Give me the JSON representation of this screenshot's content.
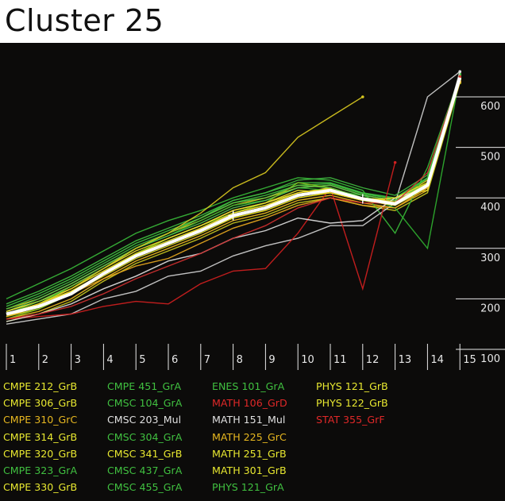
{
  "title": "Cluster 25",
  "chart_data": {
    "type": "line",
    "title": "Cluster 25",
    "categories": [
      "1",
      "2",
      "3",
      "4",
      "5",
      "6",
      "7",
      "8",
      "9",
      "10",
      "11",
      "12",
      "13",
      "14",
      "15"
    ],
    "x_tick_labels": [
      "1",
      "2",
      "3",
      "4",
      "5",
      "6",
      "7",
      "8",
      "9",
      "10",
      "11",
      "12",
      "13",
      "14",
      "15"
    ],
    "y_tick_labels": [
      "100",
      "200",
      "300",
      "400",
      "500",
      "600"
    ],
    "ylim": [
      100,
      650
    ],
    "y_axis_side": "right",
    "grid": false,
    "legend_position": "bottom",
    "mean_line": {
      "color": "#ffffff",
      "values": [
        170,
        185,
        210,
        250,
        285,
        310,
        335,
        365,
        380,
        405,
        415,
        398,
        388,
        425,
        638
      ],
      "markers_at": [
        "8",
        "12"
      ]
    },
    "series": [
      {
        "name": "CMPE 212_GrB",
        "color": "#e8e830",
        "values": [
          175,
          195,
          220,
          255,
          290,
          315,
          340,
          370,
          385,
          410,
          420,
          400,
          395,
          430,
          640
        ]
      },
      {
        "name": "CMPE 306_GrB",
        "color": "#d8d828",
        "values": [
          165,
          180,
          210,
          245,
          280,
          305,
          330,
          360,
          375,
          400,
          410,
          395,
          385,
          420,
          635
        ]
      },
      {
        "name": "CMPE 310_GrC",
        "color": "#e8b820",
        "values": [
          160,
          175,
          200,
          240,
          275,
          300,
          325,
          355,
          370,
          395,
          405,
          390,
          380,
          415,
          630
        ]
      },
      {
        "name": "CMPE 314_GrB",
        "color": "#e0d020",
        "values": [
          180,
          200,
          230,
          265,
          300,
          330,
          355,
          385,
          400,
          420,
          425,
          405,
          395,
          435,
          640
        ]
      },
      {
        "name": "CMPE 320_GrB",
        "color": "#f0f040",
        "values": [
          170,
          190,
          215,
          250,
          285,
          310,
          335,
          365,
          380,
          405,
          415,
          398,
          388,
          425,
          638
        ]
      },
      {
        "name": "CMPE 323_GrA",
        "color": "#40c040",
        "values": [
          190,
          215,
          245,
          280,
          315,
          340,
          365,
          395,
          410,
          430,
          430,
          410,
          400,
          440,
          645
        ]
      },
      {
        "name": "CMPE 330_GrB",
        "color": "#c8c820",
        "values": [
          155,
          170,
          195,
          235,
          270,
          295,
          320,
          350,
          365,
          390,
          400,
          385,
          375,
          410,
          628
        ]
      },
      {
        "name": "CMPE 451_GrA",
        "color": "#40c840",
        "values": [
          185,
          210,
          240,
          275,
          310,
          335,
          360,
          390,
          405,
          425,
          428,
          408,
          398,
          438,
          642
        ]
      },
      {
        "name": "CMSC 104_GrA",
        "color": "#38b838",
        "values": [
          200,
          230,
          260,
          295,
          330,
          355,
          375,
          400,
          420,
          440,
          435,
          415,
          330,
          460,
          640
        ]
      },
      {
        "name": "CMSC 203_Mul",
        "color": "#d0d0d0",
        "values": [
          150,
          160,
          170,
          200,
          215,
          245,
          255,
          285,
          305,
          320,
          345,
          345,
          390,
          600,
          650
        ]
      },
      {
        "name": "CMSC 304_GrA",
        "color": "#30b030",
        "values": [
          170,
          190,
          225,
          260,
          300,
          325,
          355,
          385,
          395,
          420,
          415,
          405,
          380,
          300,
          640
        ]
      },
      {
        "name": "CMSC 341_GrB",
        "color": "#e8e030",
        "values": [
          165,
          185,
          215,
          250,
          290,
          320,
          345,
          375,
          390,
          415,
          410,
          395,
          400,
          415,
          630
        ]
      },
      {
        "name": "CMSC 437_GrA",
        "color": "#40b840",
        "values": [
          180,
          205,
          235,
          270,
          305,
          330,
          360,
          395,
          410,
          435,
          440,
          420,
          405,
          445,
          645
        ]
      },
      {
        "name": "CMSC 455_GrA",
        "color": "#50c050",
        "values": [
          175,
          200,
          230,
          265,
          300,
          325,
          350,
          380,
          395,
          420,
          425,
          405,
          395,
          430,
          640
        ]
      },
      {
        "name": "ENES 101_GrA",
        "color": "#80c020",
        "values": [
          160,
          180,
          210,
          250,
          290,
          320,
          345,
          370,
          390,
          430,
          420,
          395,
          390,
          420,
          635
        ]
      },
      {
        "name": "MATH 106_GrD",
        "color": "#d02020",
        "values": [
          160,
          165,
          170,
          185,
          195,
          190,
          230,
          255,
          260,
          330,
          420,
          220,
          470,
          null,
          null
        ]
      },
      {
        "name": "MATH 151_Mul",
        "color": "#e0e0e0",
        "values": [
          155,
          170,
          190,
          220,
          245,
          275,
          290,
          320,
          335,
          360,
          350,
          355,
          400,
          420,
          650
        ]
      },
      {
        "name": "MATH 225_GrC",
        "color": "#e8a820",
        "values": [
          165,
          185,
          210,
          240,
          265,
          280,
          310,
          340,
          360,
          385,
          400,
          385,
          380,
          420,
          630
        ]
      },
      {
        "name": "MATH 251_GrB",
        "color": "#d8d020",
        "values": [
          170,
          190,
          220,
          255,
          290,
          310,
          335,
          360,
          375,
          400,
          410,
          395,
          385,
          425,
          635
        ]
      },
      {
        "name": "MATH 301_GrB",
        "color": "#f0e030",
        "values": [
          175,
          195,
          225,
          260,
          295,
          320,
          345,
          375,
          390,
          410,
          418,
          400,
          392,
          428,
          638
        ]
      },
      {
        "name": "PHYS 121_GrA",
        "color": "#60c040",
        "values": [
          170,
          195,
          225,
          260,
          300,
          330,
          360,
          390,
          400,
          425,
          420,
          400,
          390,
          425,
          640
        ]
      },
      {
        "name": "PHYS 121_GrB",
        "color": "#d8c820",
        "values": [
          165,
          190,
          220,
          260,
          300,
          330,
          370,
          420,
          450,
          520,
          560,
          600,
          null,
          null,
          null
        ]
      },
      {
        "name": "PHYS 122_GrB",
        "color": "#e8d828",
        "values": [
          170,
          190,
          215,
          250,
          285,
          310,
          340,
          370,
          385,
          405,
          410,
          395,
          400,
          430,
          640
        ]
      },
      {
        "name": "STAT 355_GrF",
        "color": "#d03030",
        "values": [
          160,
          170,
          185,
          210,
          240,
          265,
          290,
          320,
          345,
          380,
          400,
          390,
          390,
          450,
          640
        ]
      }
    ]
  },
  "legend": {
    "columns": [
      [
        {
          "label": "CMPE 212_GrB",
          "color": "#e8e830"
        },
        {
          "label": "CMPE 306_GrB",
          "color": "#e8e830"
        },
        {
          "label": "CMPE 310_GrC",
          "color": "#e8b820"
        },
        {
          "label": "CMPE 314_GrB",
          "color": "#e8e830"
        },
        {
          "label": "CMPE 320_GrB",
          "color": "#e8e830"
        },
        {
          "label": "CMPE 323_GrA",
          "color": "#40c040"
        },
        {
          "label": "CMPE 330_GrB",
          "color": "#e8e830"
        }
      ],
      [
        {
          "label": "CMPE 451_GrA",
          "color": "#40c040"
        },
        {
          "label": "CMSC 104_GrA",
          "color": "#40c040"
        },
        {
          "label": "CMSC 203_Mul",
          "color": "#e0e0e0"
        },
        {
          "label": "CMSC 304_GrA",
          "color": "#40c040"
        },
        {
          "label": "CMSC 341_GrB",
          "color": "#e8e830"
        },
        {
          "label": "CMSC 437_GrA",
          "color": "#40c040"
        },
        {
          "label": "CMSC 455_GrA",
          "color": "#40c040"
        }
      ],
      [
        {
          "label": "ENES 101_GrA",
          "color": "#40c040"
        },
        {
          "label": "MATH 106_GrD",
          "color": "#e02828"
        },
        {
          "label": "MATH 151_Mul",
          "color": "#e0e0e0"
        },
        {
          "label": "MATH 225_GrC",
          "color": "#e8b820"
        },
        {
          "label": "MATH 251_GrB",
          "color": "#e8e830"
        },
        {
          "label": "MATH 301_GrB",
          "color": "#e8e830"
        },
        {
          "label": "PHYS 121_GrA",
          "color": "#40c040"
        }
      ],
      [
        {
          "label": "PHYS 121_GrB",
          "color": "#e8e830"
        },
        {
          "label": "PHYS 122_GrB",
          "color": "#e8e830"
        },
        {
          "label": "STAT 355_GrF",
          "color": "#e02828"
        }
      ]
    ]
  }
}
